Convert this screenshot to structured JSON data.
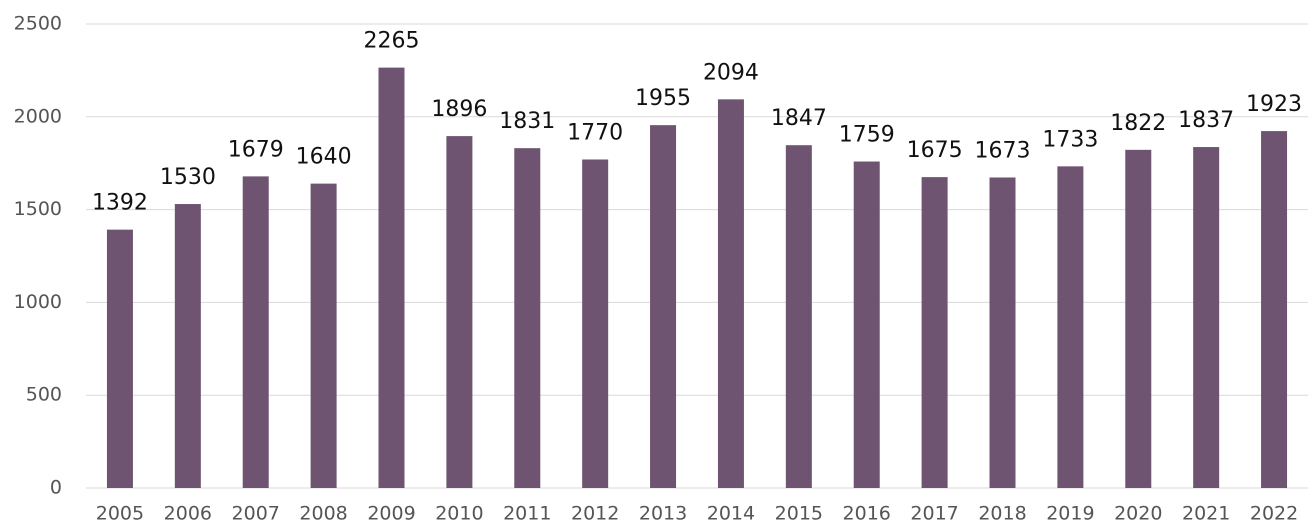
{
  "chart_data": {
    "type": "bar",
    "categories": [
      "2005",
      "2006",
      "2007",
      "2008",
      "2009",
      "2010",
      "2011",
      "2012",
      "2013",
      "2014",
      "2015",
      "2016",
      "2017",
      "2018",
      "2019",
      "2020",
      "2021",
      "2022"
    ],
    "values": [
      1392,
      1530,
      1679,
      1640,
      2265,
      1896,
      1831,
      1770,
      1955,
      2094,
      1847,
      1759,
      1675,
      1673,
      1733,
      1822,
      1837,
      1923
    ],
    "color": "#6e5470",
    "ylim": [
      0,
      2500
    ],
    "yticks": [
      0,
      500,
      1000,
      1500,
      2000,
      2500
    ],
    "grid": true
  }
}
